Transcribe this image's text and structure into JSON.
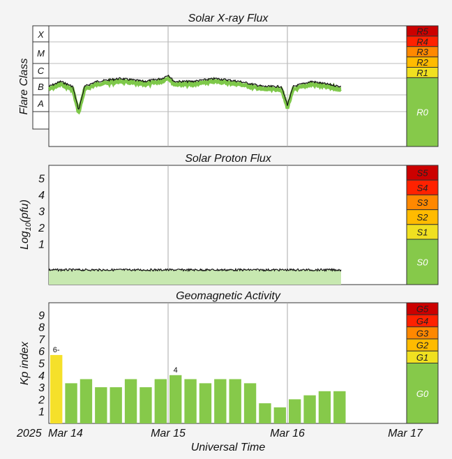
{
  "chart_data": [
    {
      "type": "line",
      "title": "Solar X-ray Flux",
      "ylabel": "Flare Class",
      "class_labels": [
        "X",
        "M",
        "C",
        "B",
        "A"
      ],
      "x_labels": [
        "Mar 14",
        "Mar 15",
        "Mar 16",
        "Mar 17"
      ],
      "series": [
        {
          "name": "",
          "x_days": [
            0,
            0.1,
            0.2,
            0.25,
            0.3,
            0.4,
            0.6,
            0.8,
            0.95,
            1.0,
            1.05,
            1.2,
            1.4,
            1.6,
            1.8,
            1.95,
            2.0,
            2.05,
            2.2,
            2.45
          ],
          "values": [
            "C1",
            "C2",
            "C1",
            "A4",
            "C1",
            "C2",
            "C3",
            "C2",
            "C3",
            "C5",
            "C2",
            "C2",
            "C3",
            "C2",
            "C1",
            "C1",
            "A8",
            "C1",
            "C2",
            "C1"
          ]
        }
      ],
      "scale_colors": [
        "#cc0000",
        "#ff2200",
        "#ff8800",
        "#ffbb00",
        "#f0e020",
        "#86c94a"
      ],
      "scale_labels": [
        "R5",
        "R4",
        "R3",
        "R2",
        "R1",
        "R0"
      ]
    },
    {
      "type": "line",
      "title": "Solar Proton Flux",
      "ylabel": "Log10(pfu)",
      "ylabel_main": "Log",
      "ylabel_sub": "10",
      "ylabel_tail": "(pfu)",
      "yticks": [
        "1",
        "2",
        "3",
        "4",
        "5"
      ],
      "ylim": [
        -1.5,
        5.8
      ],
      "series": [
        {
          "name": "",
          "x_days": [
            0,
            2.45
          ],
          "values": [
            -0.6,
            -0.6
          ]
        }
      ],
      "scale_labels": [
        "S5",
        "S4",
        "S3",
        "S2",
        "S1",
        "S0"
      ]
    },
    {
      "type": "bar",
      "title": "Geomagnetic Activity",
      "ylabel": "Kp index",
      "yticks": [
        "1",
        "2",
        "3",
        "4",
        "5",
        "6",
        "7",
        "8",
        "9"
      ],
      "ylim": [
        0,
        10
      ],
      "values": [
        5.67,
        3.33,
        3.67,
        3.0,
        3.0,
        3.67,
        3.0,
        3.67,
        4.0,
        3.67,
        3.33,
        3.67,
        3.67,
        3.33,
        1.67,
        1.33,
        2.0,
        2.33,
        2.67,
        2.67
      ],
      "data_labels": {
        "0": "6-",
        "8": "4"
      },
      "bar_colors": {
        "storm": "#f5e02a",
        "quiet": "#86c94a"
      },
      "scale_labels": [
        "G5",
        "G4",
        "G3",
        "G2",
        "G1",
        "G0"
      ]
    }
  ],
  "xaxis": {
    "year": "2025",
    "ticks": [
      "Mar 14",
      "Mar 15",
      "Mar 16",
      "Mar 17"
    ],
    "label": "Universal Time"
  }
}
